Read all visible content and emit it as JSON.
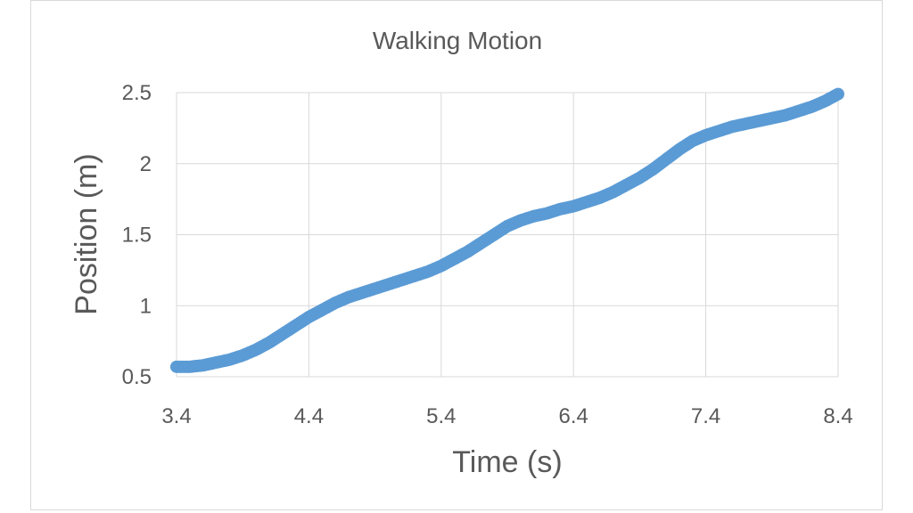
{
  "chart_data": {
    "type": "scatter",
    "title": "Walking Motion",
    "xlabel": "Time (s)",
    "ylabel": "Position (m)",
    "xlim": [
      3.4,
      8.4
    ],
    "ylim": [
      0.5,
      2.5
    ],
    "xticks": [
      "3.4",
      "4.4",
      "5.4",
      "6.4",
      "7.4",
      "8.4"
    ],
    "yticks": [
      "0.5",
      "1",
      "1.5",
      "2",
      "2.5"
    ],
    "grid": true,
    "legend": "none",
    "color": "#5b9bd5",
    "series": [
      {
        "x": [
          3.4,
          3.5,
          3.6,
          3.7,
          3.8,
          3.9,
          4.0,
          4.1,
          4.2,
          4.3,
          4.4,
          4.5,
          4.6,
          4.7,
          4.8,
          4.9,
          5.0,
          5.1,
          5.2,
          5.3,
          5.4,
          5.5,
          5.6,
          5.7,
          5.8,
          5.9,
          6.0,
          6.1,
          6.2,
          6.3,
          6.4,
          6.5,
          6.6,
          6.7,
          6.8,
          6.9,
          7.0,
          7.1,
          7.2,
          7.3,
          7.4,
          7.5,
          7.6,
          7.7,
          7.8,
          7.9,
          8.0,
          8.1,
          8.2,
          8.3,
          8.4
        ],
        "y": [
          0.57,
          0.57,
          0.58,
          0.6,
          0.62,
          0.65,
          0.69,
          0.74,
          0.8,
          0.86,
          0.92,
          0.97,
          1.02,
          1.06,
          1.09,
          1.12,
          1.15,
          1.18,
          1.21,
          1.24,
          1.28,
          1.33,
          1.38,
          1.44,
          1.5,
          1.56,
          1.6,
          1.63,
          1.65,
          1.68,
          1.7,
          1.73,
          1.76,
          1.8,
          1.85,
          1.9,
          1.96,
          2.03,
          2.1,
          2.16,
          2.2,
          2.23,
          2.26,
          2.28,
          2.3,
          2.32,
          2.34,
          2.37,
          2.4,
          2.44,
          2.49
        ]
      }
    ]
  }
}
